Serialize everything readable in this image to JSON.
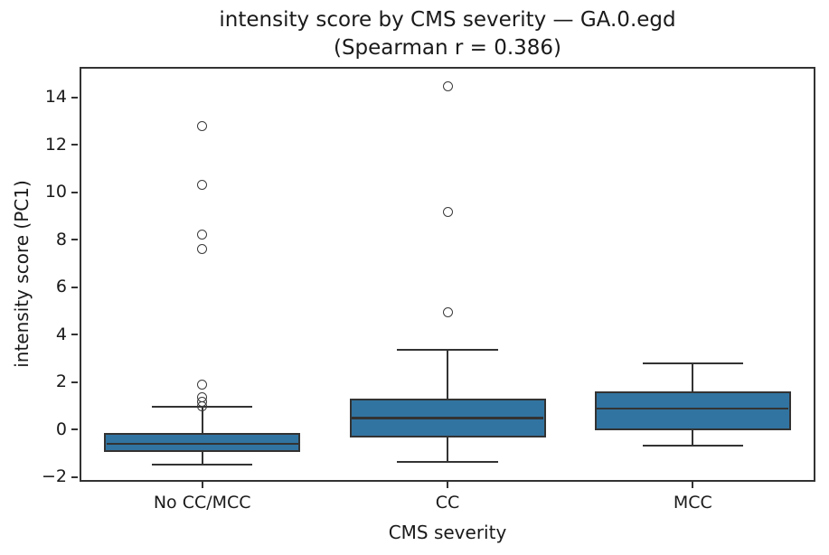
{
  "chart_data": {
    "type": "box",
    "title": "intensity score by CMS severity — GA.0.egd\n(Spearman r = 0.386)",
    "xlabel": "CMS severity",
    "ylabel": "intensity score (PC1)",
    "categories": [
      "No CC/MCC",
      "CC",
      "MCC"
    ],
    "yticks": [
      -2,
      0,
      2,
      4,
      6,
      8,
      10,
      12,
      14
    ],
    "ylim": [
      -2.21,
      15.28
    ],
    "grid": false,
    "box_width_frac": 0.8,
    "cap_width_frac": 0.41,
    "series": [
      {
        "name": "No CC/MCC",
        "whislo": -1.5,
        "q1": -0.94,
        "med": -0.61,
        "q3": -0.15,
        "whishi": 0.95,
        "fliers": [
          0.98,
          1.15,
          1.36,
          1.88,
          7.6,
          8.2,
          10.3,
          12.8
        ]
      },
      {
        "name": "CC",
        "whislo": -1.38,
        "q1": -0.35,
        "med": 0.48,
        "q3": 1.3,
        "whishi": 3.35,
        "fliers": [
          4.95,
          9.15,
          14.45
        ]
      },
      {
        "name": "MCC",
        "whislo": -0.67,
        "q1": -0.05,
        "med": 0.88,
        "q3": 1.6,
        "whishi": 2.78,
        "fliers": []
      }
    ],
    "colors": {
      "box_fill": "#3174a1",
      "line": "#333333",
      "flier_edge": "#3a3a3a",
      "text": "#1a1a1a",
      "background": "#ffffff"
    }
  }
}
